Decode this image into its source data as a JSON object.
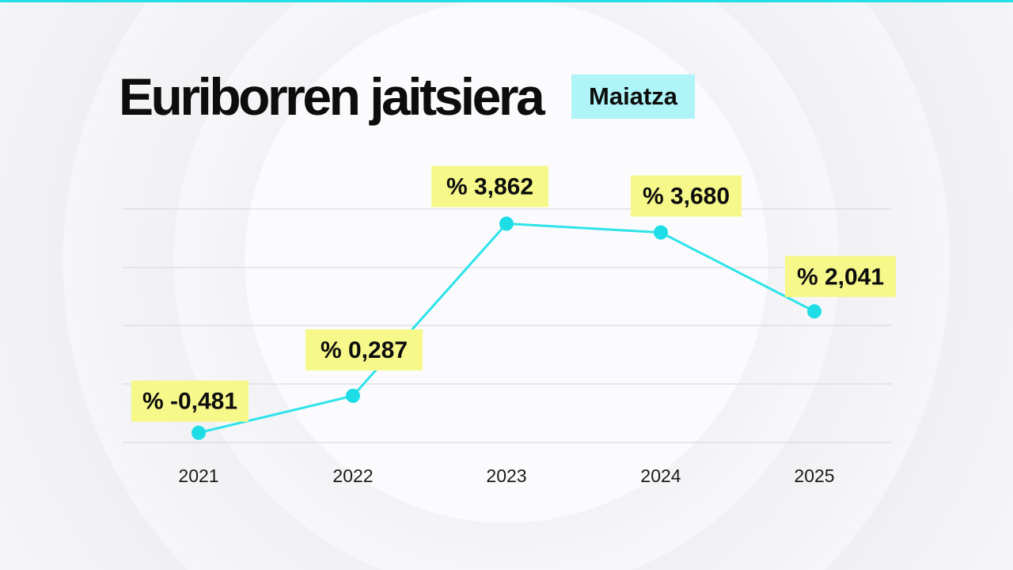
{
  "header": {
    "title": "Euriborren jaitsiera",
    "badge": "Maiatza"
  },
  "colors": {
    "accent": "#2ee3ea",
    "label_background": "#f6f88a",
    "badge_background": "#aef4f8",
    "text": "#0d0d0d"
  },
  "chart_data": {
    "type": "line",
    "title": "Euriborren jaitsiera",
    "subtitle": "Maiatza",
    "xlabel": "",
    "ylabel": "",
    "categories": [
      "2021",
      "2022",
      "2023",
      "2024",
      "2025"
    ],
    "series": [
      {
        "values": [
          -0.481,
          0.287,
          3.862,
          3.68,
          2.041
        ],
        "labels": [
          "% -0,481",
          "% 0,287",
          "% 3,862",
          "% 3,680",
          "% 2,041"
        ]
      }
    ],
    "ylim": [
      -0.7,
      4.2
    ],
    "grid": true,
    "legend": "none"
  }
}
